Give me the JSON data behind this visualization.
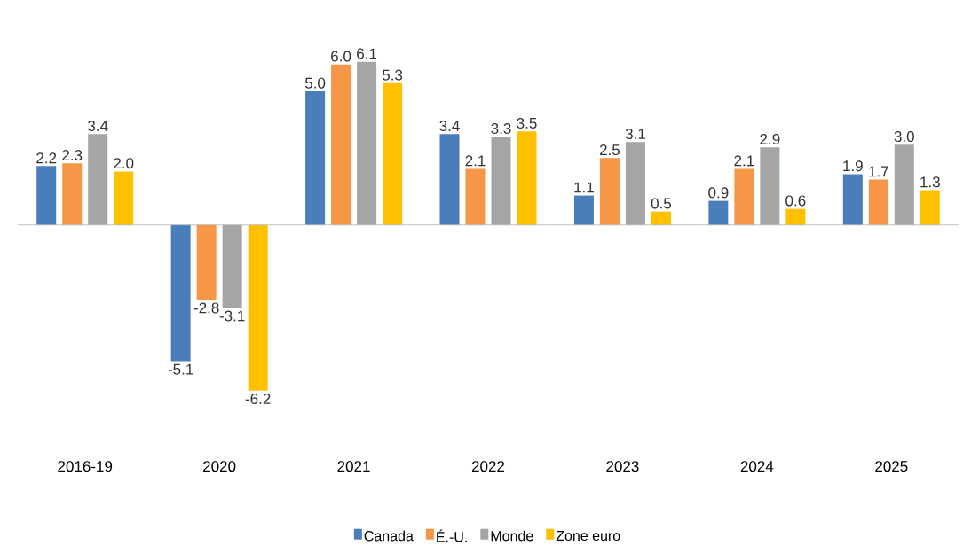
{
  "chart_data": {
    "type": "bar",
    "categories": [
      "2016-19",
      "2020",
      "2021",
      "2022",
      "2023",
      "2024",
      "2025"
    ],
    "series": [
      {
        "name": "Canada",
        "color": "#4a7ebb",
        "values": [
          2.2,
          -5.1,
          5.0,
          3.4,
          1.1,
          0.9,
          1.9
        ],
        "value_labels": [
          "2.2",
          "-5.1",
          "5.0",
          "3.4",
          "1.1",
          "0.9",
          "1.9"
        ]
      },
      {
        "name": "É.-U.",
        "color": "#f79646",
        "values": [
          2.3,
          -2.8,
          6.0,
          2.1,
          2.5,
          2.1,
          1.7
        ],
        "value_labels": [
          "2.3",
          "-2.8",
          "6.0",
          "2.1",
          "2.5",
          "2.1",
          "1.7"
        ]
      },
      {
        "name": "Monde",
        "color": "#a5a5a5",
        "values": [
          3.4,
          -3.1,
          6.1,
          3.3,
          3.1,
          2.9,
          3.0
        ],
        "value_labels": [
          "3.4",
          "-3.1",
          "6.1",
          "3.3",
          "3.1",
          "2.9",
          "3.0"
        ]
      },
      {
        "name": "Zone euro",
        "color": "#ffc000",
        "values": [
          2.0,
          -6.2,
          5.3,
          3.5,
          0.5,
          0.6,
          1.3
        ],
        "value_labels": [
          "2.0",
          "-6.2",
          "5.3",
          "3.5",
          "0.5",
          "0.6",
          "1.3"
        ]
      }
    ],
    "legend": "bottom"
  }
}
